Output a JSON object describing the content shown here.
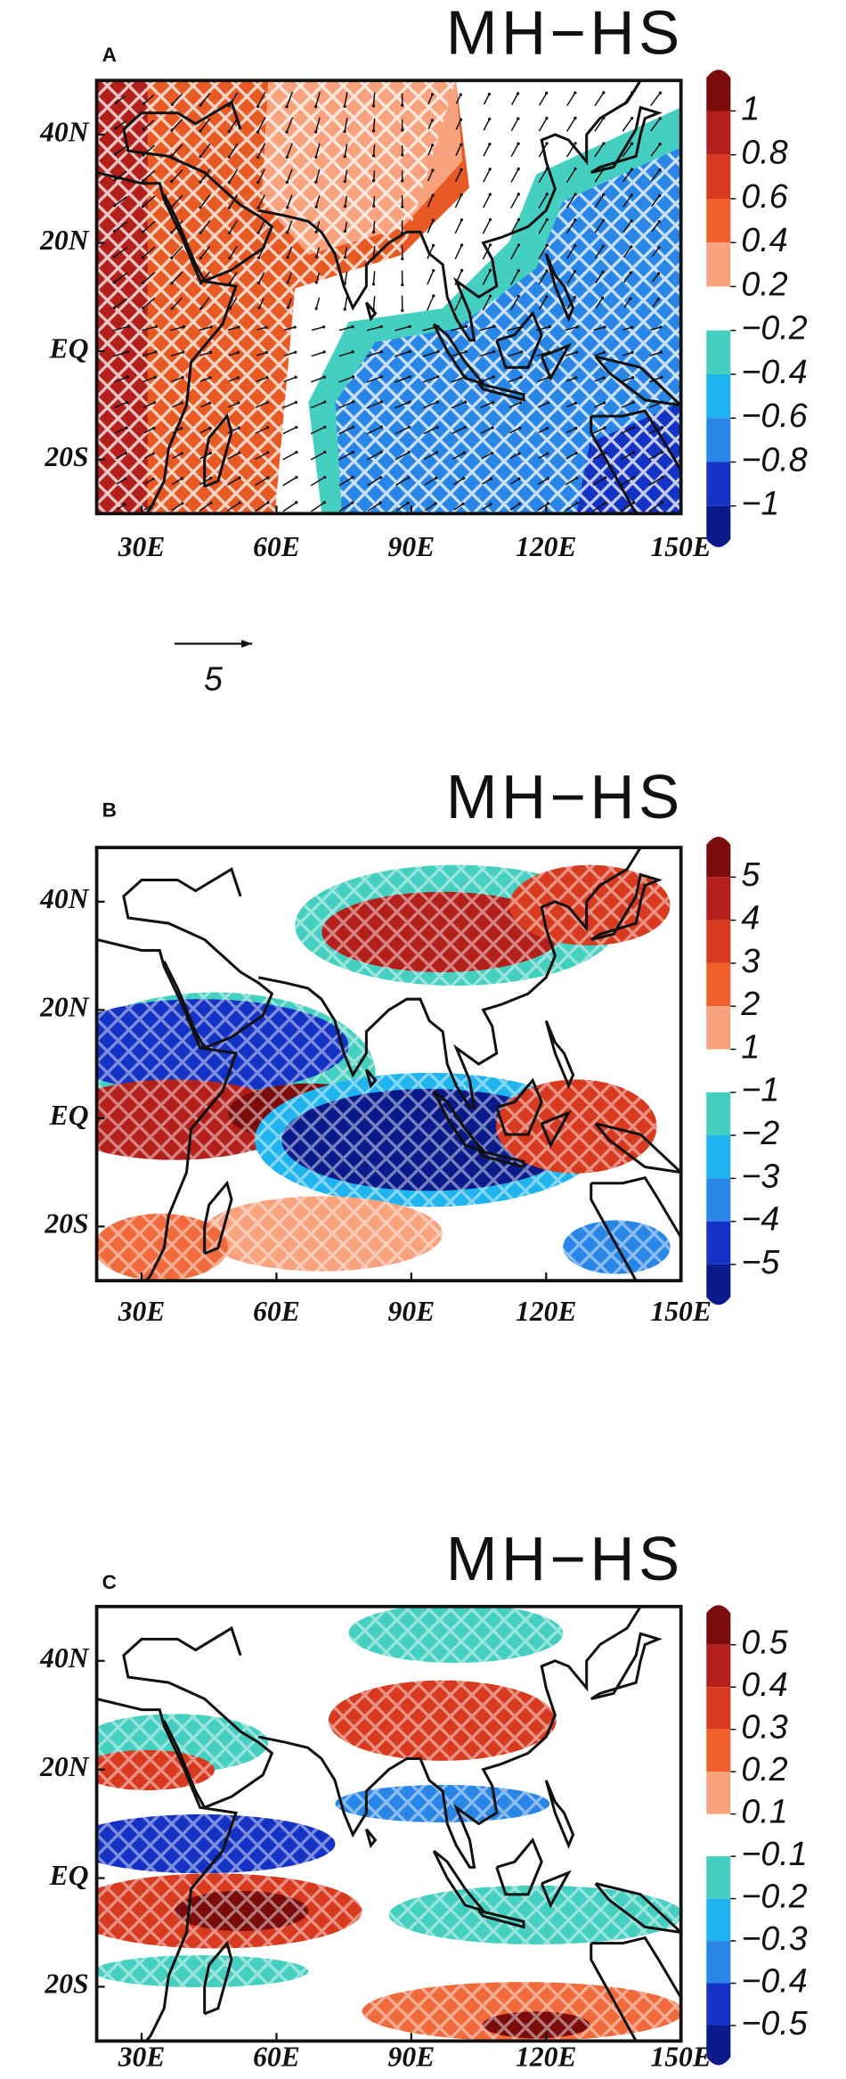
{
  "panels": [
    {
      "label": "A",
      "title": "MH−HS",
      "map": {
        "xlim": [
          20,
          150
        ],
        "ylim": [
          -30,
          50
        ],
        "xticks": [
          {
            "value": 30,
            "label": "30E"
          },
          {
            "value": 60,
            "label": "60E"
          },
          {
            "value": 90,
            "label": "90E"
          },
          {
            "value": 120,
            "label": "120E"
          },
          {
            "value": 150,
            "label": "150E"
          }
        ],
        "yticks": [
          {
            "value": 40,
            "label": "40N"
          },
          {
            "value": 20,
            "label": "20N"
          },
          {
            "value": 0,
            "label": "EQ"
          },
          {
            "value": -20,
            "label": "20S"
          }
        ]
      },
      "colorbar": {
        "ticks": [
          1,
          0.8,
          0.6,
          0.4,
          0.2,
          {
            "value": -0.2,
            "label": "−0.2"
          },
          {
            "value": -0.4,
            "label": "−0.4"
          },
          {
            "value": -0.6,
            "label": "−0.6"
          },
          {
            "value": -0.8,
            "label": "−0.8"
          },
          {
            "value": -1,
            "label": "−1"
          }
        ],
        "colors": [
          "#7a0c0c",
          "#b3201c",
          "#d83a20",
          "#f0602a",
          "#f8a27e",
          "#ffffff",
          "#45cfc0",
          "#1fb4ee",
          "#2a86e6",
          "#1432c4",
          "#0a1a8a"
        ]
      },
      "reference_vector": 5
    },
    {
      "label": "B",
      "title": "MH−HS",
      "map": {
        "xlim": [
          20,
          150
        ],
        "ylim": [
          -30,
          50
        ],
        "xticks": [
          {
            "value": 30,
            "label": "30E"
          },
          {
            "value": 60,
            "label": "60E"
          },
          {
            "value": 90,
            "label": "90E"
          },
          {
            "value": 120,
            "label": "120E"
          },
          {
            "value": 150,
            "label": "150E"
          }
        ],
        "yticks": [
          {
            "value": 40,
            "label": "40N"
          },
          {
            "value": 20,
            "label": "20N"
          },
          {
            "value": 0,
            "label": "EQ"
          },
          {
            "value": -20,
            "label": "20S"
          }
        ]
      },
      "colorbar": {
        "ticks": [
          5,
          4,
          3,
          2,
          1,
          {
            "value": -1,
            "label": "−1"
          },
          {
            "value": -2,
            "label": "−2"
          },
          {
            "value": -3,
            "label": "−3"
          },
          {
            "value": -4,
            "label": "−4"
          },
          {
            "value": -5,
            "label": "−5"
          }
        ],
        "colors": [
          "#7a0c0c",
          "#b3201c",
          "#d83a20",
          "#f0602a",
          "#f8a27e",
          "#ffffff",
          "#45cfc0",
          "#1fb4ee",
          "#2a86e6",
          "#1432c4",
          "#0a1a8a"
        ]
      }
    },
    {
      "label": "C",
      "title": "MH−HS",
      "map": {
        "xlim": [
          20,
          150
        ],
        "ylim": [
          -30,
          50
        ],
        "xticks": [
          {
            "value": 30,
            "label": "30E"
          },
          {
            "value": 60,
            "label": "60E"
          },
          {
            "value": 90,
            "label": "90E"
          },
          {
            "value": 120,
            "label": "120E"
          },
          {
            "value": 150,
            "label": "150E"
          }
        ],
        "yticks": [
          {
            "value": 40,
            "label": "40N"
          },
          {
            "value": 20,
            "label": "20N"
          },
          {
            "value": 0,
            "label": "EQ"
          },
          {
            "value": -20,
            "label": "20S"
          }
        ]
      },
      "colorbar": {
        "ticks": [
          0.5,
          0.4,
          0.3,
          0.2,
          0.1,
          {
            "value": -0.1,
            "label": "−0.1"
          },
          {
            "value": -0.2,
            "label": "−0.2"
          },
          {
            "value": -0.3,
            "label": "−0.3"
          },
          {
            "value": -0.4,
            "label": "−0.4"
          },
          {
            "value": -0.5,
            "label": "−0.5"
          }
        ],
        "colors": [
          "#7a0c0c",
          "#b3201c",
          "#d83a20",
          "#f0602a",
          "#f8a27e",
          "#ffffff",
          "#45cfc0",
          "#1fb4ee",
          "#2a86e6",
          "#1432c4",
          "#0a1a8a"
        ]
      }
    }
  ]
}
